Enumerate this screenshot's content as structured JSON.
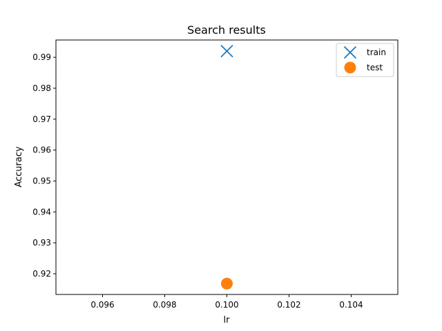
{
  "chart_data": {
    "type": "scatter",
    "title": "Search results",
    "xlabel": "lr",
    "ylabel": "Accuracy",
    "xlim": [
      0.0945,
      0.1055
    ],
    "ylim": [
      0.9133,
      0.9956
    ],
    "xticks": [
      {
        "value": 0.096,
        "label": "0.096"
      },
      {
        "value": 0.098,
        "label": "0.098"
      },
      {
        "value": 0.1,
        "label": "0.100"
      },
      {
        "value": 0.102,
        "label": "0.102"
      },
      {
        "value": 0.104,
        "label": "0.104"
      }
    ],
    "yticks": [
      {
        "value": 0.92,
        "label": "0.92"
      },
      {
        "value": 0.93,
        "label": "0.93"
      },
      {
        "value": 0.94,
        "label": "0.94"
      },
      {
        "value": 0.95,
        "label": "0.95"
      },
      {
        "value": 0.96,
        "label": "0.96"
      },
      {
        "value": 0.97,
        "label": "0.97"
      },
      {
        "value": 0.98,
        "label": "0.98"
      },
      {
        "value": 0.99,
        "label": "0.99"
      }
    ],
    "grid": false,
    "legend_position": "top-right",
    "series": [
      {
        "name": "train",
        "marker": "x",
        "color": "#1f77b4",
        "points": [
          {
            "x": 0.1,
            "y": 0.992
          }
        ]
      },
      {
        "name": "test",
        "marker": "o",
        "color": "#ff7f0e",
        "points": [
          {
            "x": 0.1,
            "y": 0.9168
          }
        ]
      }
    ]
  }
}
